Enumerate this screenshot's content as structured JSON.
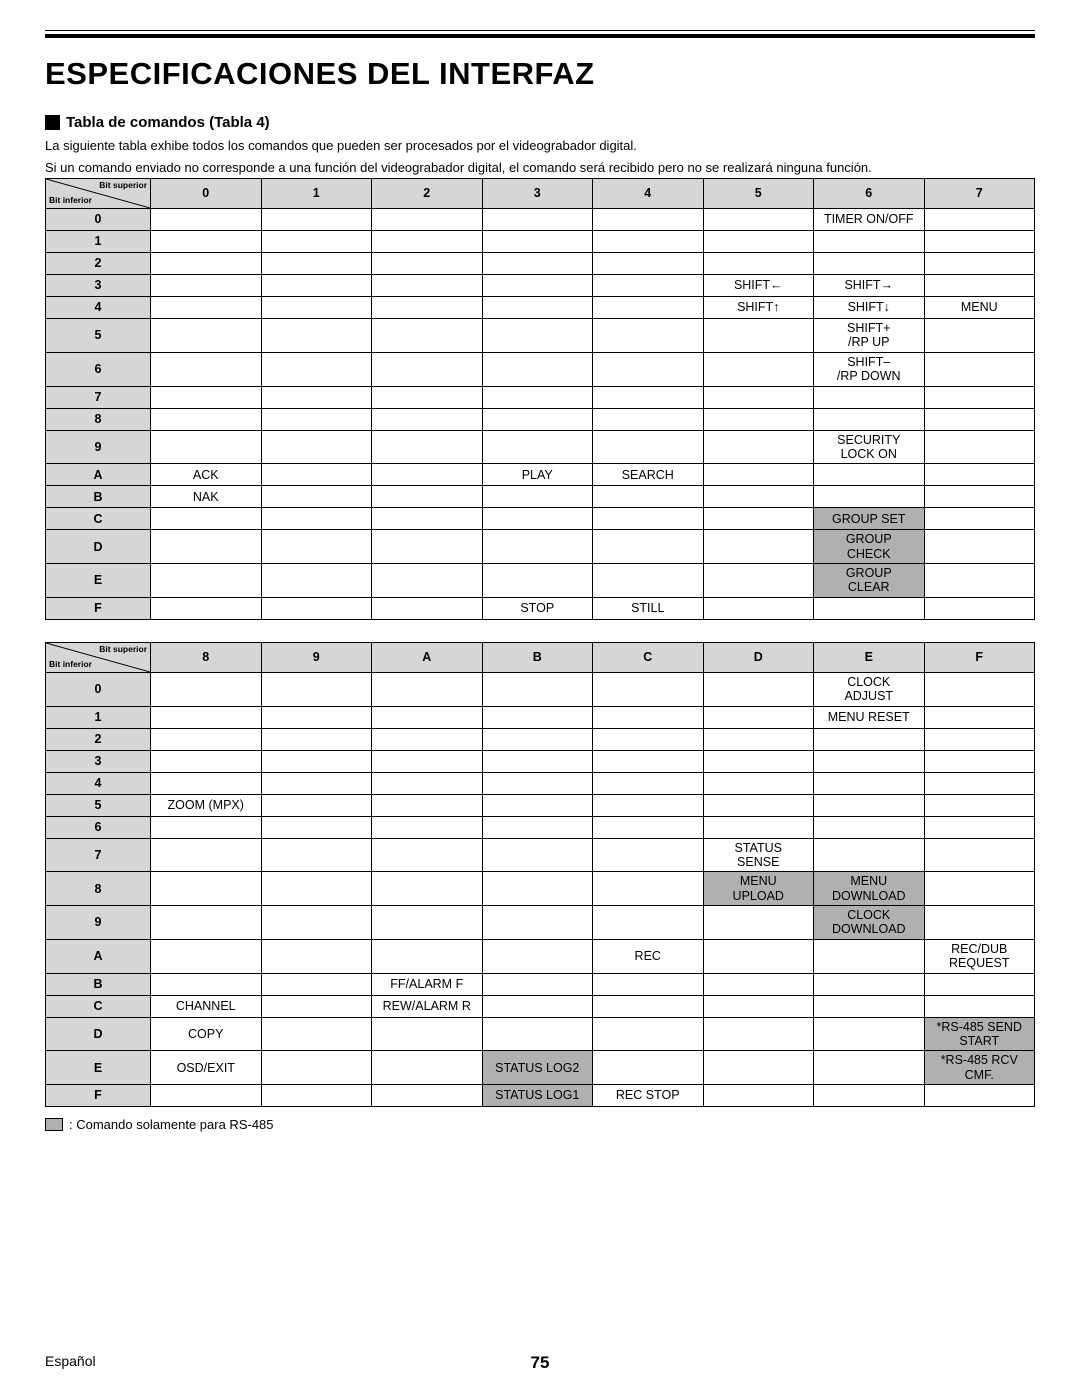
{
  "page": {
    "title": "ESPECIFICACIONES DEL INTERFAZ",
    "subheading": "Tabla de comandos (Tabla 4)",
    "intro_line1": "La siguiente tabla exhibe todos los comandos que pueden ser procesados por el videograbador digital.",
    "intro_line2": "Si un comando enviado no corresponde a una función del videograbador digital, el comando será recibido pero no se realizará ninguna función.",
    "corner_superior": "Bit superior",
    "corner_inferior": "Bit inferior",
    "legend_text": ": Comando solamente para RS-485",
    "footer_lang": "Español",
    "footer_page": "75"
  },
  "table1": {
    "columns": [
      "0",
      "1",
      "2",
      "3",
      "4",
      "5",
      "6",
      "7"
    ],
    "rows": [
      "0",
      "1",
      "2",
      "3",
      "4",
      "5",
      "6",
      "7",
      "8",
      "9",
      "A",
      "B",
      "C",
      "D",
      "E",
      "F"
    ],
    "cells": {
      "0": {
        "6": {
          "t": "TIMER ON/OFF"
        }
      },
      "3": {
        "5": {
          "t": "SHIFT←"
        },
        "6": {
          "t": "SHIFT→"
        }
      },
      "4": {
        "5": {
          "t": "SHIFT↑"
        },
        "6": {
          "t": "SHIFT↓"
        },
        "7": {
          "t": "MENU"
        }
      },
      "5": {
        "6": {
          "t": "SHIFT+\n/RP UP",
          "tall": true
        }
      },
      "6": {
        "6": {
          "t": "SHIFT–\n/RP DOWN",
          "tall": true
        }
      },
      "9": {
        "6": {
          "t": "SECURITY\nLOCK ON",
          "tall": true
        }
      },
      "A": {
        "0": {
          "t": "ACK"
        },
        "3": {
          "t": "PLAY"
        },
        "4": {
          "t": "SEARCH"
        }
      },
      "B": {
        "0": {
          "t": "NAK"
        }
      },
      "C": {
        "6": {
          "t": "GROUP SET",
          "shade": true
        }
      },
      "D": {
        "6": {
          "t": "GROUP\nCHECK",
          "shade": true,
          "tall": true
        }
      },
      "E": {
        "6": {
          "t": "GROUP\nCLEAR",
          "shade": true,
          "tall": true
        }
      },
      "F": {
        "3": {
          "t": "STOP"
        },
        "4": {
          "t": "STILL"
        }
      }
    }
  },
  "table2": {
    "columns": [
      "8",
      "9",
      "A",
      "B",
      "C",
      "D",
      "E",
      "F"
    ],
    "rows": [
      "0",
      "1",
      "2",
      "3",
      "4",
      "5",
      "6",
      "7",
      "8",
      "9",
      "A",
      "B",
      "C",
      "D",
      "E",
      "F"
    ],
    "cells": {
      "0": {
        "E": {
          "t": "CLOCK\nADJUST",
          "tall": true
        }
      },
      "1": {
        "E": {
          "t": "MENU RESET"
        }
      },
      "5": {
        "8": {
          "t": "ZOOM (MPX)"
        }
      },
      "7": {
        "D": {
          "t": "STATUS\nSENSE",
          "tall": true
        }
      },
      "8": {
        "D": {
          "t": "MENU\nUPLOAD",
          "shade": true,
          "tall": true
        },
        "E": {
          "t": "MENU\nDOWNLOAD",
          "shade": true,
          "tall": true
        }
      },
      "9": {
        "E": {
          "t": "CLOCK\nDOWNLOAD",
          "shade": true,
          "tall": true
        }
      },
      "A": {
        "C": {
          "t": "REC"
        },
        "F": {
          "t": "REC/DUB\nREQUEST",
          "tall": true
        }
      },
      "B": {
        "A": {
          "t": "FF/ALARM F"
        }
      },
      "C": {
        "8": {
          "t": "CHANNEL"
        },
        "A": {
          "t": "REW/ALARM R"
        }
      },
      "D": {
        "8": {
          "t": "COPY"
        },
        "F": {
          "t": "*RS-485 SEND\nSTART",
          "shade": true,
          "tall": true
        }
      },
      "E": {
        "8": {
          "t": "OSD/EXIT"
        },
        "B": {
          "t": "STATUS LOG2",
          "shade": true
        },
        "F": {
          "t": "*RS-485 RCV\nCMF.",
          "shade": true,
          "tall": true
        }
      },
      "F": {
        "B": {
          "t": "STATUS LOG1",
          "shade": true
        },
        "C": {
          "t": "REC STOP"
        }
      }
    }
  }
}
